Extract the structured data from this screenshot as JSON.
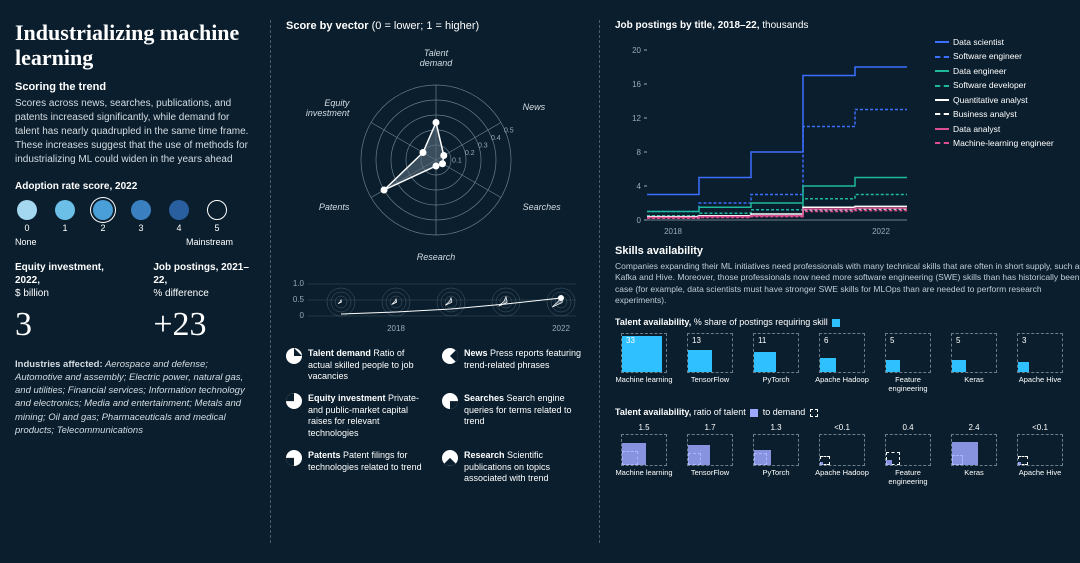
{
  "colors": {
    "bg": "#0a1e2d",
    "text": "#ffffff",
    "muted": "#d5dde3",
    "divider": "#4a5d6b",
    "blue1": "#a4d8f0",
    "blue2": "#6cc0e8",
    "blue3": "#4a9fd8",
    "blue4": "#3a7fc0",
    "cyan": "#2ec0ff",
    "lavender": "#9fa8ff"
  },
  "left": {
    "title": "Industrializing machine learning",
    "scoring_head": "Scoring the trend",
    "scoring_body": "Scores across news, searches, publications, and patents increased significantly, while demand for talent has nearly quadrupled in the same time frame. These increases suggest that the use of methods for industrializing ML could widen in the years ahead",
    "adoption_label": "Adoption rate score, 2022",
    "dots": [
      {
        "num": "0",
        "color": "#a4d8f0",
        "selected": false
      },
      {
        "num": "1",
        "color": "#6cc0e8",
        "selected": false
      },
      {
        "num": "2",
        "color": "#4a9fd8",
        "selected": true
      },
      {
        "num": "3",
        "color": "#3a7fc0",
        "selected": false
      },
      {
        "num": "4",
        "color": "#2a5f9f",
        "selected": false
      },
      {
        "num": "5",
        "color": "outline",
        "selected": false
      }
    ],
    "dot_end_left": "None",
    "dot_end_right": "Mainstream",
    "stat1_label": "Equity investment, 2022,",
    "stat1_sub": "$ billion",
    "stat1_value": "3",
    "stat2_label": "Job postings, 2021–22,",
    "stat2_sub": "% difference",
    "stat2_value": "+23",
    "industries_label": "Industries affected:",
    "industries_body": "Aerospace and defense; Automotive and assembly; Electric power, natural gas, and utilities; Financial services; Information technology and electronics; Media and entertainment; Metals and mining; Oil and gas; Pharmaceuticals and medical products; Telecommunications"
  },
  "mid": {
    "title_bold": "Score by vector",
    "title_rest": " (0 = lower; 1 = higher)",
    "radar": {
      "axes": [
        "Talent demand",
        "News",
        "Searches",
        "Research",
        "Patents",
        "Equity investment"
      ],
      "rings": [
        "0.1",
        "0.2",
        "0.3",
        "0.4",
        "0.5"
      ],
      "values": [
        0.25,
        0.06,
        0.05,
        0.04,
        0.4,
        0.1
      ],
      "ring_color": "#6a7d8b",
      "fill": "#5a6d7b"
    },
    "spark": {
      "y_labels": [
        "1.0",
        "0.5",
        "0"
      ],
      "x_labels": [
        "2018",
        "2022"
      ]
    },
    "legend": [
      {
        "title": "Talent demand",
        "body": "Ratio of actual skilled people to job vacancies"
      },
      {
        "title": "News",
        "body": "Press reports featuring trend-related phrases"
      },
      {
        "title": "Equity investment",
        "body": "Private- and public-market capital raises for relevant technologies"
      },
      {
        "title": "Searches",
        "body": "Search engine queries for terms related to trend"
      },
      {
        "title": "Patents",
        "body": "Patent filings for technologies related to trend"
      },
      {
        "title": "Research",
        "body": "Scientific publications on topics associated with trend"
      }
    ]
  },
  "right": {
    "jobchart": {
      "title_bold": "Job postings by title, 2018–22,",
      "title_sub": " thousands",
      "y_ticks": [
        0,
        4,
        8,
        12,
        16,
        20
      ],
      "x_ticks": [
        "2018",
        "2022"
      ],
      "series": [
        {
          "name": "Data scientist",
          "color": "#3a6fff",
          "dashed": false,
          "values": [
            3,
            5,
            8,
            17,
            18
          ]
        },
        {
          "name": "Software engineer",
          "color": "#3a6fff",
          "dashed": true,
          "values": [
            1,
            2,
            3,
            11,
            13
          ]
        },
        {
          "name": "Data engineer",
          "color": "#1fb89a",
          "dashed": false,
          "values": [
            1,
            1.5,
            2,
            4,
            5
          ]
        },
        {
          "name": "Software developer",
          "color": "#1fb89a",
          "dashed": true,
          "values": [
            0.5,
            0.8,
            1.2,
            2.5,
            3
          ]
        },
        {
          "name": "Quantitative analyst",
          "color": "#ffffff",
          "dashed": false,
          "values": [
            0.4,
            0.5,
            0.7,
            1.5,
            1.6
          ]
        },
        {
          "name": "Business analyst",
          "color": "#ffffff",
          "dashed": true,
          "values": [
            0.3,
            0.4,
            0.5,
            1.2,
            1.3
          ]
        },
        {
          "name": "Data analyst",
          "color": "#d94f8f",
          "dashed": false,
          "values": [
            0.3,
            0.4,
            0.5,
            1.3,
            1.4
          ]
        },
        {
          "name": "Machine-learning engineer",
          "color": "#d94f8f",
          "dashed": true,
          "values": [
            0.2,
            0.3,
            0.4,
            1.0,
            1.1
          ]
        }
      ]
    },
    "skills_head": "Skills availability",
    "skills_body": "Companies expanding their ML initiatives need professionals with many technical skills that are often in short supply, such as Kafka and Hive. Moreover, those professionals now need more software engineering (SWE) skills than has historically been the case (for example, data scientists must have stronger SWE skills for MLOps than are needed to perform research experiments).",
    "avail1": {
      "title_bold": "Talent availability,",
      "title_rest": " % share of postings requiring skill",
      "swatch": "#2ec0ff",
      "items": [
        {
          "name": "Machine learning",
          "val": "33",
          "w": 40,
          "h": 36
        },
        {
          "name": "TensorFlow",
          "val": "13",
          "w": 24,
          "h": 22
        },
        {
          "name": "PyTorch",
          "val": "11",
          "w": 22,
          "h": 20
        },
        {
          "name": "Apache Hadoop",
          "val": "6",
          "w": 16,
          "h": 14
        },
        {
          "name": "Feature engineering",
          "val": "5",
          "w": 14,
          "h": 12
        },
        {
          "name": "Keras",
          "val": "5",
          "w": 14,
          "h": 12
        },
        {
          "name": "Apache Hive",
          "val": "3",
          "w": 11,
          "h": 10
        }
      ]
    },
    "avail2": {
      "title_bold": "Talent availability,",
      "title_rest": " ratio of talent",
      "title_rest2": " to demand",
      "swatch1": "#9fa8ff",
      "swatch2": "#ffffff",
      "items": [
        {
          "name": "Machine learning",
          "val": "1.5",
          "t": 24,
          "d": 16
        },
        {
          "name": "TensorFlow",
          "val": "1.7",
          "t": 22,
          "d": 13
        },
        {
          "name": "PyTorch",
          "val": "1.3",
          "t": 17,
          "d": 13
        },
        {
          "name": "Apache Hadoop",
          "val": "<0.1",
          "t": 3,
          "d": 10
        },
        {
          "name": "Feature engineering",
          "val": "0.4",
          "t": 6,
          "d": 14
        },
        {
          "name": "Keras",
          "val": "2.4",
          "t": 26,
          "d": 11
        },
        {
          "name": "Apache Hive",
          "val": "<0.1",
          "t": 3,
          "d": 10
        }
      ]
    }
  }
}
